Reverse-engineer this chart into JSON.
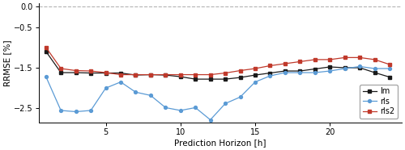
{
  "x": [
    1,
    2,
    3,
    4,
    5,
    6,
    7,
    8,
    9,
    10,
    11,
    12,
    13,
    14,
    15,
    16,
    17,
    18,
    19,
    20,
    21,
    22,
    23,
    24
  ],
  "lm": [
    -1.1,
    -1.62,
    -1.62,
    -1.63,
    -1.63,
    -1.63,
    -1.68,
    -1.67,
    -1.68,
    -1.72,
    -1.78,
    -1.78,
    -1.78,
    -1.74,
    -1.68,
    -1.63,
    -1.58,
    -1.58,
    -1.53,
    -1.48,
    -1.5,
    -1.5,
    -1.62,
    -1.73
  ],
  "rls": [
    -1.72,
    -2.55,
    -2.58,
    -2.55,
    -2.0,
    -1.85,
    -2.1,
    -2.18,
    -2.48,
    -2.55,
    -2.48,
    -2.78,
    -2.38,
    -2.22,
    -1.85,
    -1.7,
    -1.62,
    -1.62,
    -1.62,
    -1.58,
    -1.52,
    -1.47,
    -1.52,
    -1.52
  ],
  "rls2": [
    -1.0,
    -1.52,
    -1.57,
    -1.58,
    -1.62,
    -1.67,
    -1.67,
    -1.67,
    -1.67,
    -1.67,
    -1.67,
    -1.67,
    -1.63,
    -1.57,
    -1.52,
    -1.45,
    -1.4,
    -1.35,
    -1.3,
    -1.3,
    -1.25,
    -1.25,
    -1.3,
    -1.42
  ],
  "lm_color": "#1a1a1a",
  "rls_color": "#5b9bd5",
  "rls2_color": "#c0392b",
  "xlabel": "Prediction Horizon [h]",
  "ylabel": "RRMSE [%]",
  "ylim": [
    -2.85,
    0.08
  ],
  "xlim": [
    0.5,
    24.8
  ],
  "yticks": [
    0.0,
    -0.5,
    -1.5,
    -2.5
  ],
  "xticks": [
    5,
    10,
    15,
    20
  ],
  "dashed_line_y": 0.0,
  "legend_labels": [
    "lm",
    "rls",
    "rls2"
  ],
  "background_color": "#ffffff"
}
